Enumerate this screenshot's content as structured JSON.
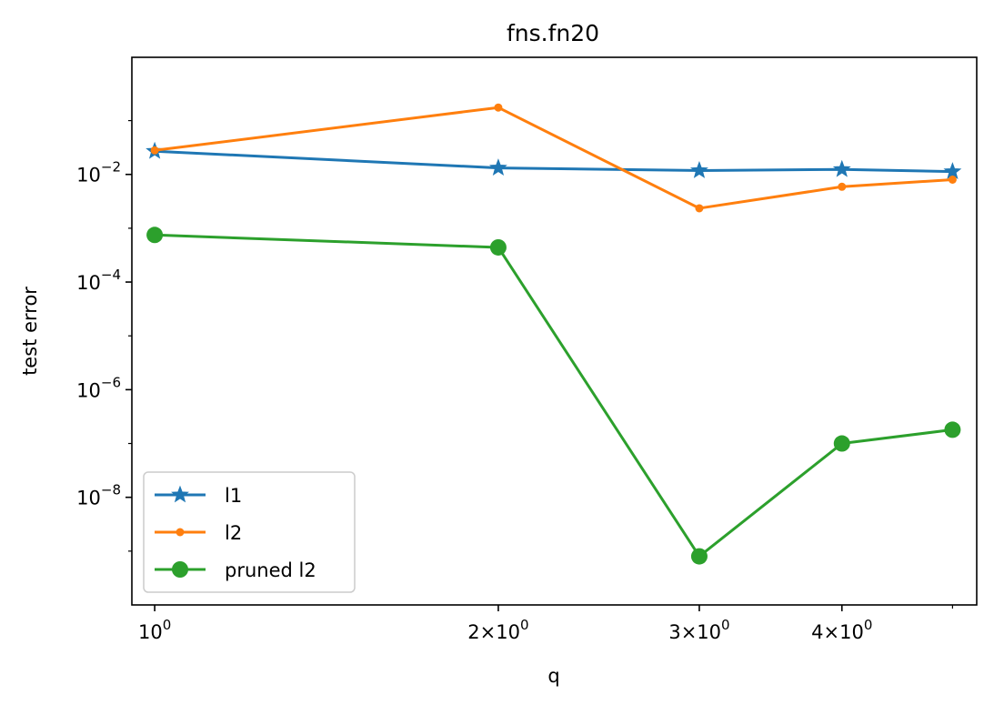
{
  "chart_data": {
    "type": "line",
    "title": "fns.fn20",
    "xlabel": "q",
    "ylabel": "test error",
    "xscale": "log",
    "yscale": "log",
    "xlim": [
      0.955,
      5.25
    ],
    "ylim": [
      1e-10,
      1.5
    ],
    "x": [
      1,
      2,
      3,
      4,
      5
    ],
    "xticks": [
      {
        "value": 1,
        "base": "10",
        "exp": "0"
      },
      {
        "value": 2,
        "mant": "2",
        "base": "10",
        "exp": "0"
      },
      {
        "value": 3,
        "mant": "3",
        "base": "10",
        "exp": "0"
      },
      {
        "value": 4,
        "mant": "4",
        "base": "10",
        "exp": "0"
      }
    ],
    "yticks": [
      {
        "value": 0.01,
        "base": "10",
        "exp": "−2"
      },
      {
        "value": 0.0001,
        "base": "10",
        "exp": "−4"
      },
      {
        "value": 1e-06,
        "base": "10",
        "exp": "−6"
      },
      {
        "value": 1e-08,
        "base": "10",
        "exp": "−8"
      }
    ],
    "grid": false,
    "legend_position": "lower-left",
    "series": [
      {
        "name": "l1",
        "color": "#1f77b4",
        "marker": "star",
        "values": [
          0.027,
          0.0132,
          0.0118,
          0.0124,
          0.0113
        ]
      },
      {
        "name": "l2",
        "color": "#ff7f0e",
        "marker": "point",
        "values": [
          0.028,
          0.175,
          0.00235,
          0.0059,
          0.008
        ]
      },
      {
        "name": "pruned l2",
        "color": "#2ca02c",
        "marker": "circle",
        "values": [
          0.00075,
          0.00044,
          8e-10,
          1e-07,
          1.8e-07
        ]
      }
    ]
  }
}
